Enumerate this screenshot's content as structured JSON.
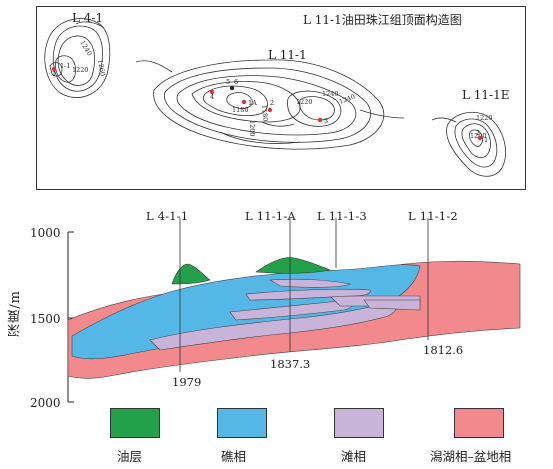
{
  "map": {
    "title": "L 11-1油田珠江组顶面构造图",
    "field_labels": [
      "L 4-1",
      "L 11-1",
      "L 11-1E"
    ],
    "contour_values": [
      "1260",
      "1240",
      "1220",
      "1200",
      "1180",
      "1240",
      "1220",
      "1240",
      "1180",
      "1220",
      "1200"
    ],
    "well_markers": [
      "1",
      "2",
      "3",
      "4",
      "5",
      "6",
      "1A",
      "1-1",
      "2",
      "1"
    ]
  },
  "section": {
    "well_labels": [
      "L 4-1-1",
      "L 11-1-A",
      "L 11-1-3",
      "L 11-1-2"
    ],
    "y_axis": {
      "title": "深度/m",
      "ticks": [
        "1000",
        "1500",
        "2000"
      ]
    },
    "depth_labels": [
      "1979",
      "1837.3",
      "1812.6"
    ]
  },
  "legend": [
    {
      "label": "油层",
      "color": "#22a04a"
    },
    {
      "label": "礁相",
      "color": "#55b7e6"
    },
    {
      "label": "滩相",
      "color": "#c9b4d9"
    },
    {
      "label": "潟湖相–盆地相",
      "color": "#f2898c"
    }
  ]
}
